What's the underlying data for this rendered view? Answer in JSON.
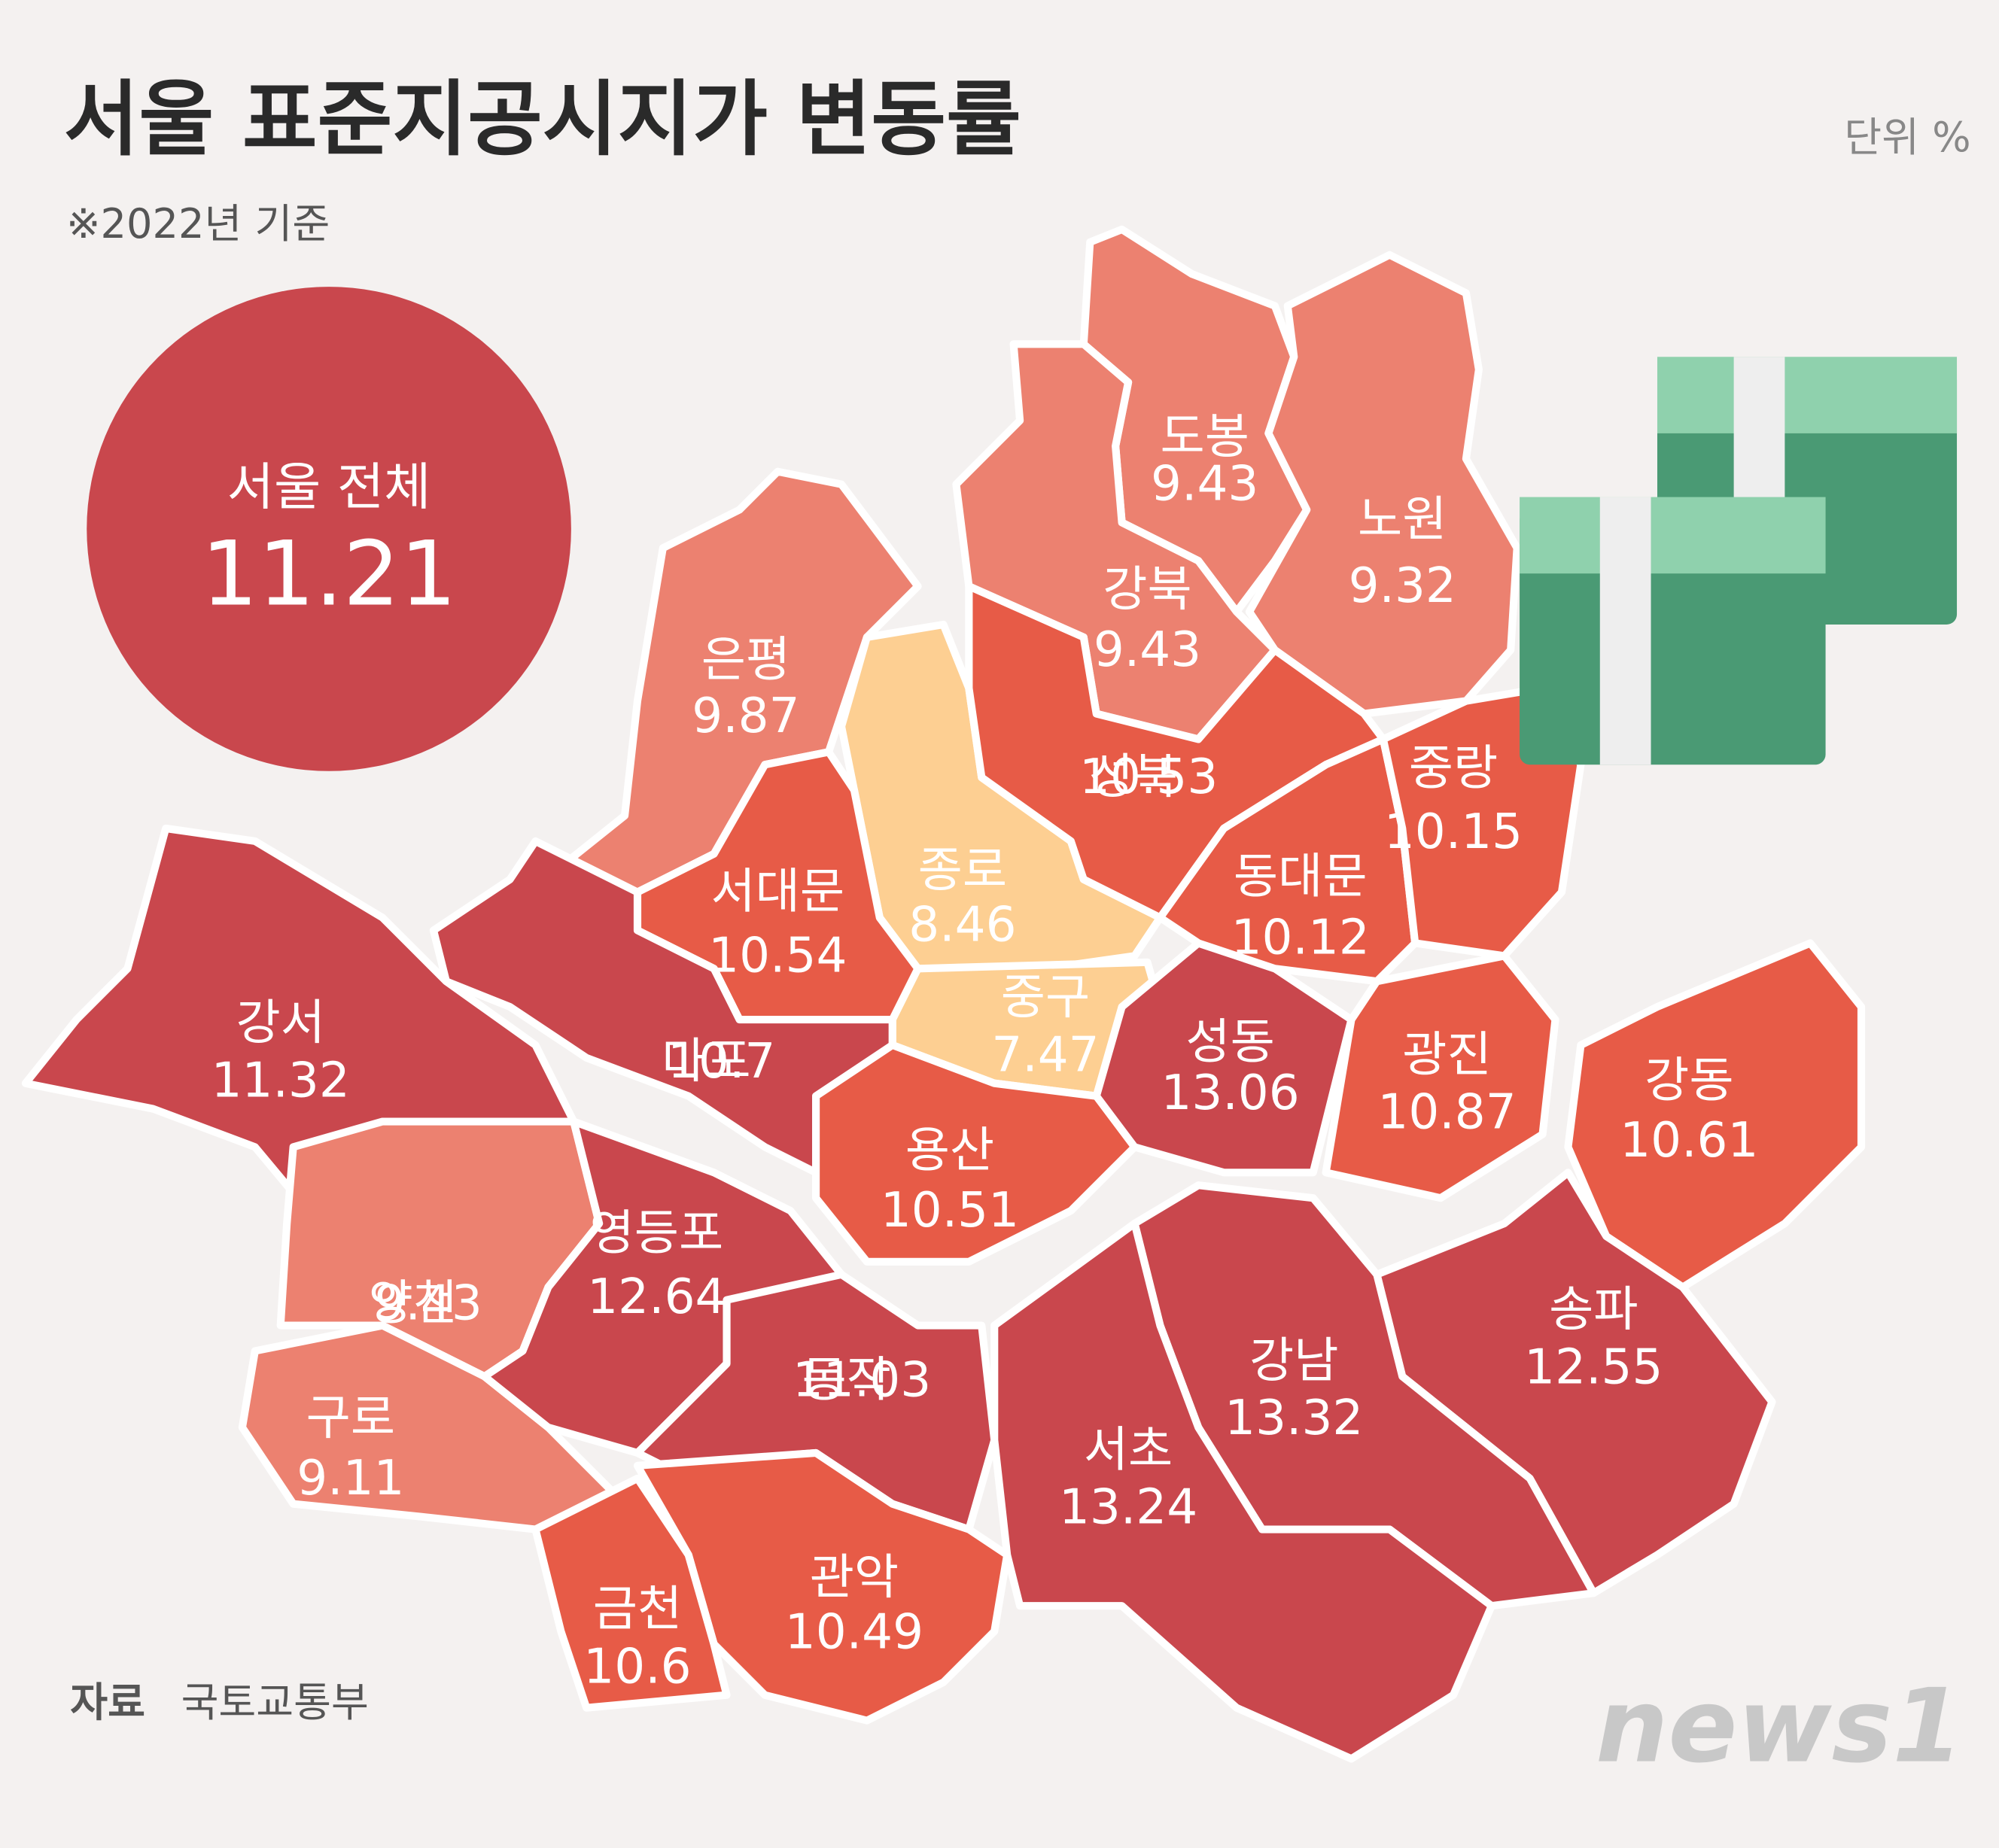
{
  "header": {
    "title": "서울 표준지공시지가 변동률",
    "note": "※2022년 기준",
    "unit": "단위 %"
  },
  "overall": {
    "label": "서울 전체",
    "value": 11.21,
    "color": "#c9474d"
  },
  "districts": [
    {
      "name": "도봉",
      "value": 9.43,
      "color": "#ec8170"
    },
    {
      "name": "노원",
      "value": 9.32,
      "color": "#ec8170"
    },
    {
      "name": "강북",
      "value": 9.43,
      "color": "#ec8170"
    },
    {
      "name": "은평",
      "value": 9.87,
      "color": "#ec8170"
    },
    {
      "name": "종로",
      "value": 8.46,
      "color": "#fdcf92"
    },
    {
      "name": "중구",
      "value": 7.47,
      "color": "#fdcf92"
    },
    {
      "name": "성북",
      "value": 10.53,
      "color": "#e75b47"
    },
    {
      "name": "서대문",
      "value": 10.54,
      "color": "#e75b47"
    },
    {
      "name": "마포",
      "value": 10.7,
      "color": "#c9474d"
    },
    {
      "name": "강서",
      "value": 11.32,
      "color": "#c9474d"
    },
    {
      "name": "양천",
      "value": 9.43,
      "color": "#ec8170"
    },
    {
      "name": "구로",
      "value": 9.11,
      "color": "#ec8170"
    },
    {
      "name": "영등포",
      "value": 12.64,
      "color": "#c9474d"
    },
    {
      "name": "동작",
      "value": 11.03,
      "color": "#c9474d"
    },
    {
      "name": "관악",
      "value": 10.49,
      "color": "#e75b47"
    },
    {
      "name": "금천",
      "value": 10.6,
      "color": "#e75b47"
    },
    {
      "name": "용산",
      "value": 10.51,
      "color": "#e75b47"
    },
    {
      "name": "성동",
      "value": 13.06,
      "color": "#c9474d"
    },
    {
      "name": "동대문",
      "value": 10.12,
      "color": "#e75b47"
    },
    {
      "name": "중랑",
      "value": 10.15,
      "color": "#e75b47"
    },
    {
      "name": "광진",
      "value": 10.87,
      "color": "#e75b47"
    },
    {
      "name": "강동",
      "value": 10.61,
      "color": "#e75b47"
    },
    {
      "name": "송파",
      "value": 12.55,
      "color": "#c9474d"
    },
    {
      "name": "강남",
      "value": 13.32,
      "color": "#c9474d"
    },
    {
      "name": "서초",
      "value": 13.24,
      "color": "#c9474d"
    }
  ],
  "footer": {
    "source_label": "자료",
    "source": "국토교통부",
    "logo": "news1"
  }
}
